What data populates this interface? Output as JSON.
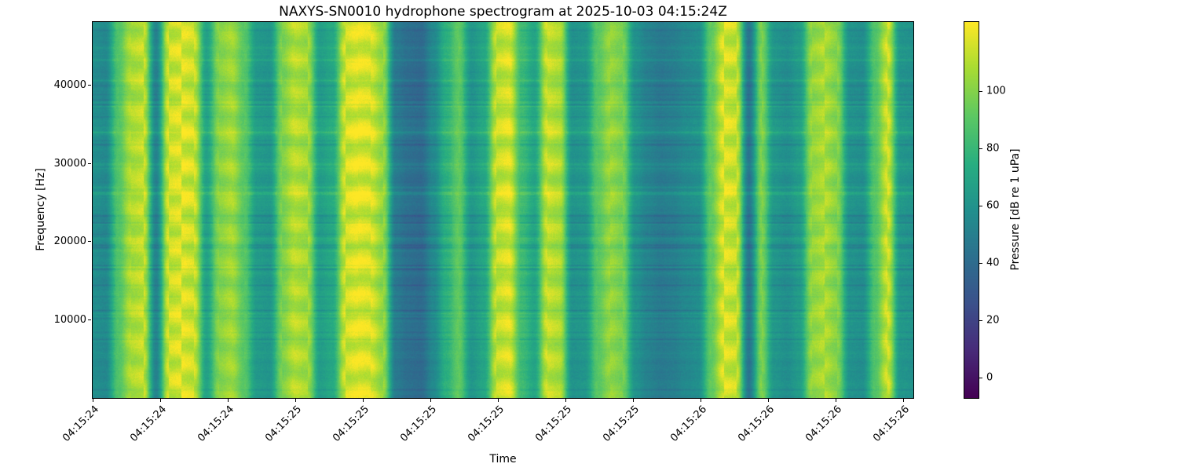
{
  "figure": {
    "background": "#ffffff"
  },
  "chart_data": {
    "type": "heatmap",
    "title": "NAXYS-SN0010 hydrophone spectrogram at 2025-10-03 04:15:24Z",
    "xlabel": "Time",
    "ylabel": "Frequency [Hz]",
    "colorbar_label": "Pressure [dB re 1 uPa]",
    "colormap": "viridis",
    "vmin": -7,
    "vmax": 124,
    "colorbar_ticks": [
      0,
      20,
      40,
      60,
      80,
      100
    ],
    "freq_range_hz": [
      0,
      48000
    ],
    "y_ticks_hz": [
      10000,
      20000,
      30000,
      40000
    ],
    "x_tick_labels": [
      "04:15:24",
      "04:15:24",
      "04:15:24",
      "04:15:25",
      "04:15:25",
      "04:15:25",
      "04:15:25",
      "04:15:25",
      "04:15:25",
      "04:15:26",
      "04:15:26",
      "04:15:26",
      "04:15:26"
    ],
    "column_db": [
      58,
      55,
      88,
      108,
      112,
      52,
      114,
      117,
      114,
      68,
      100,
      106,
      90,
      64,
      62,
      98,
      110,
      106,
      66,
      72,
      114,
      118,
      116,
      103,
      48,
      42,
      40,
      55,
      76,
      92,
      62,
      70,
      112,
      116,
      82,
      70,
      112,
      108,
      60,
      62,
      90,
      103,
      97,
      60,
      52,
      48,
      50,
      55,
      58,
      92,
      116,
      113,
      45,
      98,
      62,
      58,
      65,
      103,
      108,
      100,
      60,
      58,
      88,
      114,
      62,
      60
    ],
    "viridis_stops": [
      [
        0.0,
        68,
        1,
        84
      ],
      [
        0.13,
        71,
        44,
        122
      ],
      [
        0.25,
        59,
        81,
        139
      ],
      [
        0.38,
        44,
        113,
        142
      ],
      [
        0.5,
        33,
        144,
        141
      ],
      [
        0.62,
        39,
        173,
        129
      ],
      [
        0.75,
        92,
        200,
        99
      ],
      [
        0.88,
        170,
        220,
        50
      ],
      [
        1.0,
        253,
        231,
        37
      ]
    ]
  }
}
